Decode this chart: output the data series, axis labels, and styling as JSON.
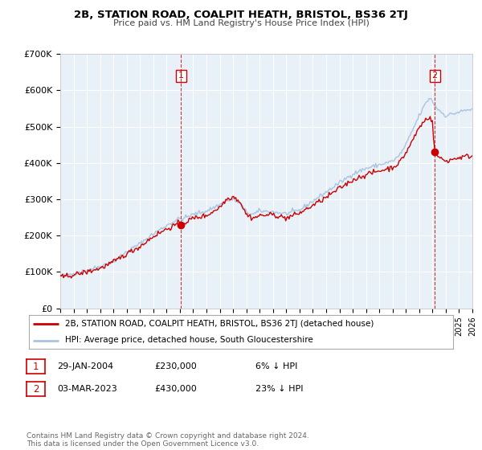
{
  "title": "2B, STATION ROAD, COALPIT HEATH, BRISTOL, BS36 2TJ",
  "subtitle": "Price paid vs. HM Land Registry's House Price Index (HPI)",
  "ylabel_ticks": [
    "£0",
    "£100K",
    "£200K",
    "£300K",
    "£400K",
    "£500K",
    "£600K",
    "£700K"
  ],
  "ylim": [
    0,
    700000
  ],
  "xlim_start": 1995,
  "xlim_end": 2026,
  "hpi_color": "#aac4e0",
  "price_color": "#cc0000",
  "plot_bg_color": "#e8f0f8",
  "sale1_date_num": 2004.08,
  "sale1_price": 230000,
  "sale1_label": "1",
  "sale2_date_num": 2023.17,
  "sale2_price": 430000,
  "sale2_label": "2",
  "legend_line1": "2B, STATION ROAD, COALPIT HEATH, BRISTOL, BS36 2TJ (detached house)",
  "legend_line2": "HPI: Average price, detached house, South Gloucestershire",
  "table_row1": [
    "1",
    "29-JAN-2004",
    "£230,000",
    "6% ↓ HPI"
  ],
  "table_row2": [
    "2",
    "03-MAR-2023",
    "£430,000",
    "23% ↓ HPI"
  ],
  "footnote": "Contains HM Land Registry data © Crown copyright and database right 2024.\nThis data is licensed under the Open Government Licence v3.0.",
  "background_color": "#ffffff",
  "grid_color": "#ffffff"
}
